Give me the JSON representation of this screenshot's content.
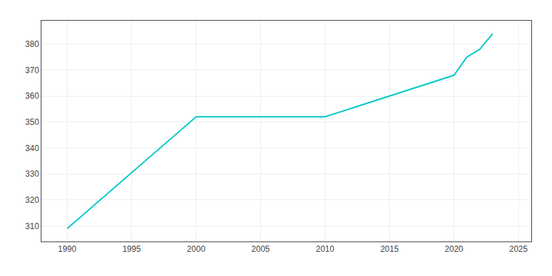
{
  "chart_data": {
    "type": "line",
    "x": [
      1990,
      2000,
      2010,
      2015,
      2020,
      2021,
      2022,
      2023
    ],
    "values": [
      309,
      352,
      352,
      360,
      368,
      375,
      378,
      384
    ],
    "color": "#00C8C8",
    "xlim": [
      1988,
      2026
    ],
    "ylim": [
      304,
      389
    ],
    "xticks": [
      1990,
      1995,
      2000,
      2005,
      2010,
      2015,
      2020,
      2025
    ],
    "yticks": [
      310,
      320,
      330,
      340,
      350,
      360,
      370,
      380
    ],
    "grid": true
  }
}
